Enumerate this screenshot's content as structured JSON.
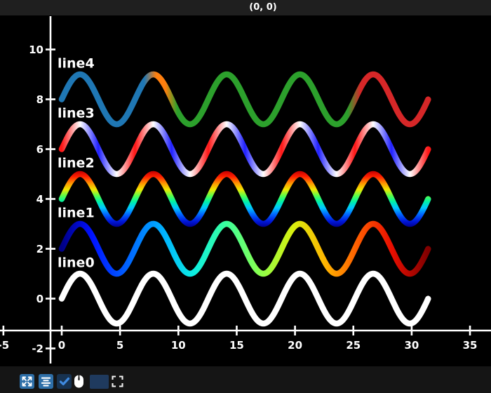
{
  "titlebar": {
    "background": "#1f1f1f",
    "text_color": "#ffffff"
  },
  "chart_data": {
    "type": "line",
    "title": "(0, 0)",
    "x_max": 31.416,
    "amplitude": 1,
    "line_width": 8.5,
    "x_ticks": [
      -5,
      0,
      5,
      10,
      15,
      20,
      25,
      30,
      35
    ],
    "y_ticks": [
      -2,
      0,
      2,
      4,
      6,
      8,
      10
    ],
    "axis_color": "#ffffff",
    "background": "#000000",
    "grid": "off",
    "series": [
      {
        "name": "line0",
        "offset": 0,
        "colormap": "solid",
        "color": "#ffffff"
      },
      {
        "name": "line1",
        "offset": 2,
        "colormap": "x-gradient",
        "style": "jet colormap along x (dark blue to dark red)",
        "stops": [
          [
            0,
            "#000085"
          ],
          [
            0.08,
            "#0010ff"
          ],
          [
            0.18,
            "#0064ff"
          ],
          [
            0.28,
            "#00b4ff"
          ],
          [
            0.36,
            "#0cf0e2"
          ],
          [
            0.45,
            "#3cff9c"
          ],
          [
            0.54,
            "#8aff4d"
          ],
          [
            0.63,
            "#d8f00f"
          ],
          [
            0.72,
            "#ffb400"
          ],
          [
            0.81,
            "#ff5a00"
          ],
          [
            0.9,
            "#ea0e00"
          ],
          [
            1,
            "#800000"
          ]
        ]
      },
      {
        "name": "line2",
        "offset": 4,
        "colormap": "y-gradient",
        "style": "jet colormap by height (red crests, green middle, blue troughs)",
        "stops": [
          [
            0,
            "#c80000"
          ],
          [
            0.1,
            "#ff2000"
          ],
          [
            0.22,
            "#ff9600"
          ],
          [
            0.33,
            "#f0e800"
          ],
          [
            0.45,
            "#50ff50"
          ],
          [
            0.55,
            "#00f0a8"
          ],
          [
            0.66,
            "#00c8ff"
          ],
          [
            0.78,
            "#0064ff"
          ],
          [
            0.9,
            "#0018dc"
          ],
          [
            1,
            "#000096"
          ]
        ]
      },
      {
        "name": "line3",
        "offset": 6,
        "colormap": "slope-cycle",
        "style": "red on rising slopes, white at extrema, blue on falling slopes",
        "periods": 5,
        "cycle": [
          "#ff1616",
          "#ffffff",
          "#2020ff",
          "#ffffff"
        ]
      },
      {
        "name": "line4",
        "offset": 8,
        "colormap": "x-gradient",
        "style": "discrete segments: blue, orange, green, red",
        "stops": [
          [
            0,
            "#1f77b4"
          ],
          [
            0.225,
            "#1f77b4"
          ],
          [
            0.258,
            "#ff7f0e"
          ],
          [
            0.283,
            "#ff7f0e"
          ],
          [
            0.315,
            "#2ca02c"
          ],
          [
            0.78,
            "#2ca02c"
          ],
          [
            0.815,
            "#d62728"
          ],
          [
            1,
            "#d62728"
          ]
        ]
      }
    ],
    "series_label_color": "#ffffff"
  },
  "toolbar": {
    "background": "#151515",
    "buttons": [
      {
        "name": "pan-button",
        "icon": "arrows-out-icon",
        "color": "#2e6fa8"
      },
      {
        "name": "align-center-button",
        "icon": "align-center-icon",
        "color": "#2e6fa8"
      },
      {
        "name": "checkbox",
        "icon": "check-icon",
        "checked": true,
        "color": "#173250",
        "check_color": "#3f8ae0"
      },
      {
        "name": "mouse-toggle",
        "icon": "mouse-icon",
        "color": "#ffffff"
      },
      {
        "name": "color-swatch-button",
        "color": "#1f3a5e"
      },
      {
        "name": "fullscreen-button",
        "icon": "fullscreen-corners-icon",
        "color": "#ffffff"
      }
    ]
  }
}
